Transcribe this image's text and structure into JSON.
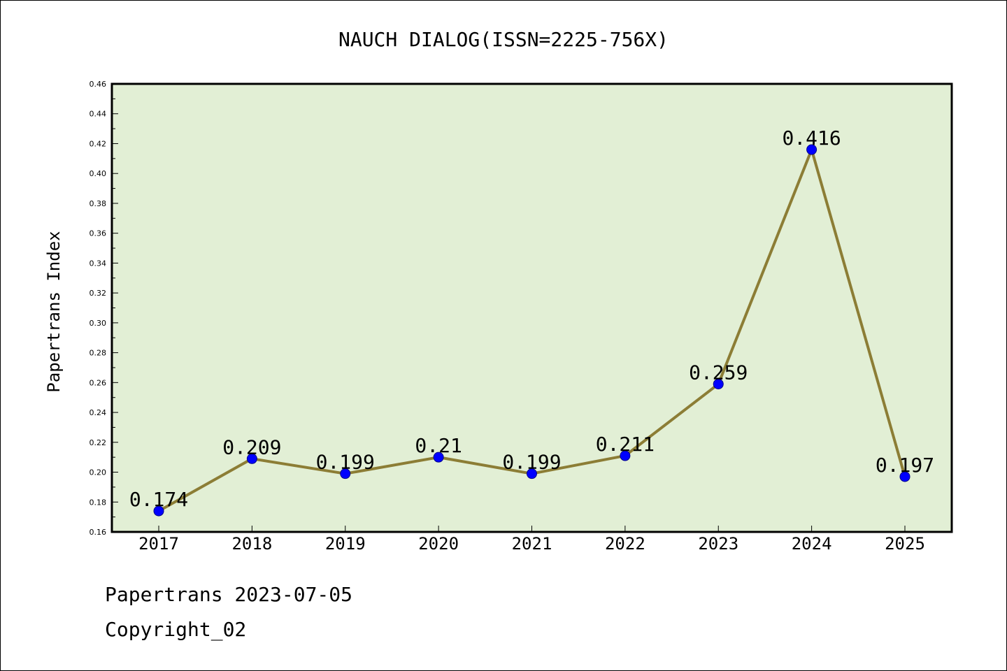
{
  "chart_data": {
    "type": "line",
    "title": "NAUCH DIALOG(ISSN=2225-756X)",
    "xlabel": "",
    "ylabel": "Papertrans Index",
    "categories": [
      "2017",
      "2018",
      "2019",
      "2020",
      "2021",
      "2022",
      "2023",
      "2024",
      "2025"
    ],
    "values": [
      0.174,
      0.209,
      0.199,
      0.21,
      0.199,
      0.211,
      0.259,
      0.416,
      0.197
    ],
    "data_labels": [
      "0.174",
      "0.209",
      "0.199",
      "0.21",
      "0.199",
      "0.211",
      "0.259",
      "0.416",
      "0.197"
    ],
    "ylim": [
      0.16,
      0.46
    ],
    "y_ticks": [
      "0.16",
      "0.18",
      "0.20",
      "0.22",
      "0.24",
      "0.26",
      "0.28",
      "0.30",
      "0.32",
      "0.34",
      "0.36",
      "0.38",
      "0.40",
      "0.42",
      "0.44",
      "0.46"
    ],
    "grid": false,
    "legend": "none",
    "colors": {
      "plot_background": "#e2efd5",
      "line": "#8c7d35",
      "marker": "#0000ff"
    }
  },
  "footer": {
    "date_line": "Papertrans 2023-07-05",
    "copyright": "Copyright_02"
  }
}
